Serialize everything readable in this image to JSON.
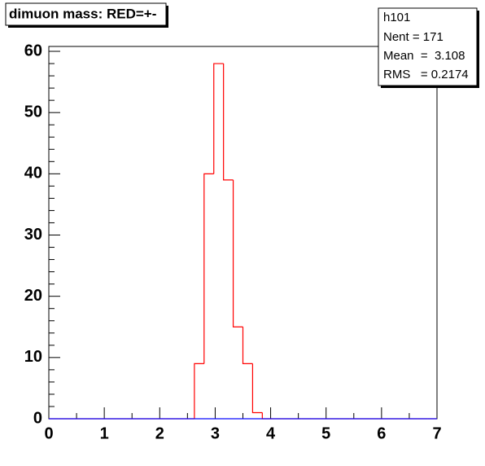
{
  "chart_data": {
    "type": "histogram",
    "title": "dimuon mass: RED=+-",
    "stats": {
      "name": "h101",
      "rows": [
        "Nent = 171",
        "Mean  =  3.108",
        "RMS   = 0.2174"
      ]
    },
    "bins": [
      0,
      0.175,
      0.35,
      0.525,
      0.7,
      0.875,
      1.05,
      1.225,
      1.4,
      1.575,
      1.75,
      1.925,
      2.1,
      2.275,
      2.45,
      2.625,
      2.8,
      2.975,
      3.15,
      3.325,
      3.5,
      3.675,
      3.85,
      4.025,
      4.2,
      4.375,
      4.55,
      4.725,
      4.9,
      5.075,
      5.25,
      5.425,
      5.6,
      5.775,
      5.95,
      6.125,
      6.3,
      6.475,
      6.65,
      6.825,
      7
    ],
    "series": [
      {
        "color": "#ff0000",
        "values": [
          0,
          0,
          0,
          0,
          0,
          0,
          0,
          0,
          0,
          0,
          0,
          0,
          0,
          0,
          0,
          9,
          40,
          58,
          39,
          15,
          9,
          1,
          0,
          0,
          0,
          0,
          0,
          0,
          0,
          0,
          0,
          0,
          0,
          0,
          0,
          0,
          0,
          0,
          0,
          0
        ]
      },
      {
        "color": "#0000ff",
        "values": [
          0,
          0,
          0,
          0,
          0,
          0,
          0,
          0,
          0,
          0,
          0,
          0,
          0,
          0,
          0,
          0,
          0,
          0,
          0,
          0,
          0,
          0,
          0,
          0,
          0,
          0,
          0,
          0,
          0,
          0,
          0,
          0,
          0,
          0,
          0,
          0,
          0,
          0,
          0,
          0
        ]
      }
    ],
    "xlim": [
      0,
      7
    ],
    "xticks": [
      0,
      1,
      2,
      3,
      4,
      5,
      6,
      7
    ],
    "xminorticks": [
      0.5,
      1.5,
      2.5,
      3.5,
      4.5,
      5.5,
      6.5
    ],
    "ylim": [
      0,
      60.8
    ],
    "yticks": [
      0,
      10,
      20,
      30,
      40,
      50,
      60
    ],
    "yminorticks": [
      2,
      4,
      6,
      8,
      12,
      14,
      16,
      18,
      22,
      24,
      26,
      28,
      32,
      34,
      36,
      38,
      42,
      44,
      46,
      48,
      52,
      54,
      56,
      58
    ]
  }
}
